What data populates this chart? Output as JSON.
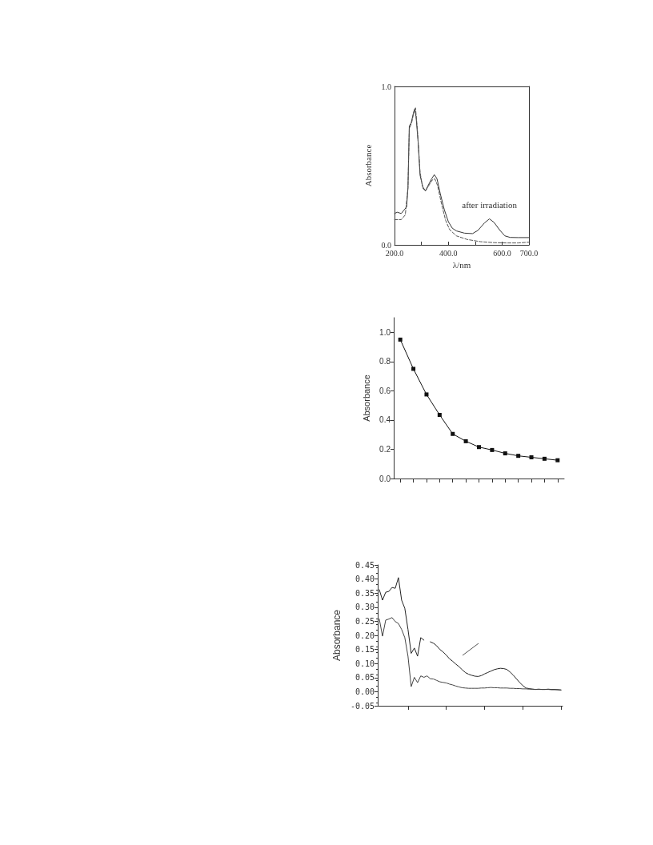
{
  "chart_data": [
    {
      "type": "line",
      "xlabel": "λ/nm",
      "ylabel": "Absorbance",
      "xlim": [
        200,
        700
      ],
      "xticks": [
        {
          "value": 200,
          "label": "200.0"
        },
        {
          "value": 300,
          "label": null
        },
        {
          "value": 400,
          "label": "400.0"
        },
        {
          "value": 500,
          "label": null
        },
        {
          "value": 600,
          "label": "600.0"
        },
        {
          "value": 700,
          "label": "700.0"
        }
      ],
      "ylim": [
        0,
        1
      ],
      "yticks": [
        {
          "value": 0,
          "label": "0.0"
        },
        {
          "value": 1,
          "label": "1.0"
        }
      ],
      "series": [
        {
          "name": "after irradiation",
          "color": "#333333",
          "line_style": "solid",
          "x": [
            200,
            210,
            225,
            245,
            250,
            255,
            262,
            270,
            275,
            280,
            288,
            295,
            305,
            315,
            325,
            338,
            348,
            358,
            370,
            385,
            400,
            415,
            430,
            460,
            490,
            510,
            535,
            553,
            570,
            590,
            610,
            630,
            660,
            700
          ],
          "values": [
            0.198,
            0.206,
            0.198,
            0.24,
            0.36,
            0.75,
            0.77,
            0.83,
            0.857,
            0.81,
            0.645,
            0.44,
            0.367,
            0.34,
            0.375,
            0.417,
            0.443,
            0.417,
            0.324,
            0.223,
            0.147,
            0.105,
            0.088,
            0.074,
            0.071,
            0.091,
            0.139,
            0.164,
            0.142,
            0.096,
            0.057,
            0.047,
            0.046,
            0.046
          ]
        },
        {
          "color": "#555555",
          "line_style": "dashed",
          "x": [
            200,
            225,
            240,
            250,
            255,
            265,
            272,
            278,
            285,
            295,
            305,
            315,
            328,
            340,
            350,
            360,
            375,
            390,
            405,
            430,
            470,
            520,
            570,
            620,
            660,
            700
          ],
          "values": [
            0.159,
            0.159,
            0.189,
            0.36,
            0.73,
            0.78,
            0.84,
            0.865,
            0.73,
            0.459,
            0.358,
            0.34,
            0.375,
            0.409,
            0.417,
            0.375,
            0.257,
            0.155,
            0.096,
            0.057,
            0.034,
            0.02,
            0.014,
            0.012,
            0.012,
            0.017
          ]
        }
      ]
    },
    {
      "type": "line",
      "ylabel": "Absorbance",
      "marker": "square",
      "categories": [
        null,
        null,
        null,
        null,
        null,
        null,
        null,
        null,
        null,
        null,
        null,
        null,
        null
      ],
      "ylim": [
        0,
        1.1
      ],
      "yticks": [
        {
          "value": 0,
          "label": "0.0"
        },
        {
          "value": 0.2,
          "label": "0.2"
        },
        {
          "value": 0.4,
          "label": "0.4"
        },
        {
          "value": 0.6,
          "label": "0.6"
        },
        {
          "value": 0.8,
          "label": "0.8"
        },
        {
          "value": 1,
          "label": "1.0"
        }
      ],
      "series": [
        {
          "color": "#111111",
          "values": [
            0.95,
            0.75,
            0.575,
            0.435,
            0.305,
            0.255,
            0.215,
            0.195,
            0.172,
            0.155,
            0.145,
            0.135,
            0.125
          ]
        }
      ]
    },
    {
      "type": "line",
      "ylabel": "Absorbance",
      "marker": "none",
      "categories": [
        null,
        null,
        null,
        null,
        null,
        null,
        null,
        null,
        null,
        null,
        null,
        null,
        null,
        null,
        null,
        null,
        null,
        null,
        null,
        null,
        null,
        null,
        null,
        null,
        null,
        null,
        null,
        null,
        null,
        null,
        null,
        null,
        null,
        null,
        null,
        null,
        null,
        null,
        null,
        null,
        null,
        null,
        null,
        null,
        null,
        null,
        null,
        null,
        null,
        null,
        null,
        null,
        null,
        null,
        null,
        null,
        null,
        null
      ],
      "ylim": [
        -0.05,
        0.45
      ],
      "yticks": [
        {
          "value": -0.05,
          "label": "-0.05"
        },
        {
          "value": 0,
          "label": "0.00"
        },
        {
          "value": 0.05,
          "label": "0.05"
        },
        {
          "value": 0.1,
          "label": "0.10"
        },
        {
          "value": 0.15,
          "label": "0.15"
        },
        {
          "value": 0.2,
          "label": "0.20"
        },
        {
          "value": 0.25,
          "label": "0.25"
        },
        {
          "value": 0.3,
          "label": "0.30"
        },
        {
          "value": 0.35,
          "label": "0.35"
        },
        {
          "value": 0.4,
          "label": "0.40"
        },
        {
          "value": 0.45,
          "label": "0.45"
        }
      ],
      "series": [
        {
          "color": "#222222",
          "values": [
            0.362,
            0.325,
            0.353,
            0.356,
            0.37,
            0.367,
            0.405,
            0.325,
            0.296,
            0.221,
            0.136,
            0.155,
            0.126,
            0.192,
            0.183,
            null,
            0.177,
            0.172,
            0.163,
            0.15,
            0.141,
            0.13,
            0.117,
            0.108,
            0.098,
            0.089,
            0.078,
            0.068,
            0.062,
            0.058,
            0.055,
            0.054,
            0.057,
            0.063,
            0.068,
            0.073,
            0.078,
            0.081,
            0.083,
            0.082,
            0.079,
            0.07,
            0.059,
            0.046,
            0.033,
            0.022,
            0.013,
            0.011,
            0.009,
            0.008,
            0.009,
            0.008,
            0.008,
            0.009,
            0.008,
            0.008,
            0.007,
            0.006
          ]
        },
        {
          "color": "#444444",
          "values": [
            0.258,
            0.197,
            0.254,
            0.258,
            0.263,
            0.249,
            0.242,
            0.221,
            0.192,
            0.126,
            0.018,
            0.051,
            0.032,
            0.056,
            0.051,
            0.056,
            0.046,
            0.045,
            0.04,
            0.035,
            0.033,
            0.031,
            0.027,
            0.024,
            0.02,
            0.017,
            0.014,
            0.013,
            0.012,
            0.012,
            0.012,
            0.012,
            0.013,
            0.013,
            0.014,
            0.015,
            0.014,
            0.014,
            0.013,
            0.013,
            0.013,
            0.012,
            0.012,
            0.011,
            0.011,
            0.01,
            0.01,
            0.009,
            0.009,
            0.008,
            0.008,
            0.008,
            0.008,
            0.008,
            0.007,
            0.007,
            0.007,
            0.006
          ]
        }
      ]
    }
  ]
}
